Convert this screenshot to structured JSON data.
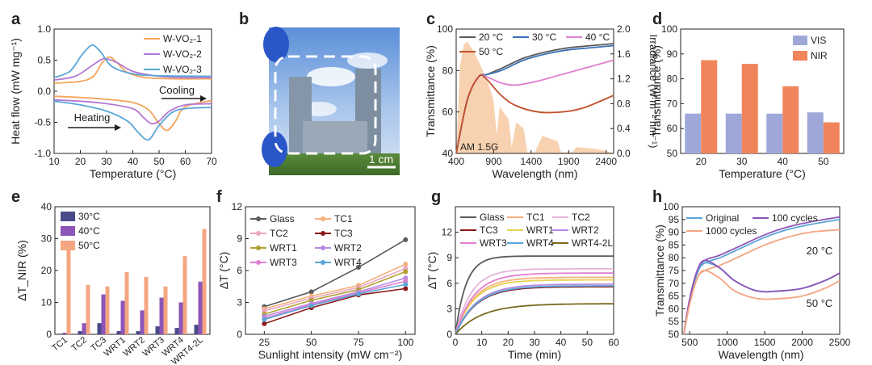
{
  "colors": {
    "orange": "#f5a45a",
    "purple": "#b478d2",
    "blue": "#5aa6d8",
    "blueDark": "#3a72b8",
    "salmon": "#f4a582",
    "navy": "#4a4a8a",
    "violet": "#8c55b8",
    "periwinkle": "#9ea8d8",
    "coral": "#f2845c",
    "darkgray": "#5a5a5a",
    "darkred": "#8b1a1a",
    "olive": "#b0a030",
    "peach": "#f5b07c",
    "pinklight": "#eaa5c0",
    "violetLight": "#b88ae0",
    "pink": "#e07fd0",
    "brown": "#c0502a",
    "khaki": "#e8d050",
    "oliveDark": "#7a6a20",
    "lavender": "#e6b4d8"
  },
  "panel_labels": [
    "a",
    "b",
    "c",
    "d",
    "e",
    "f",
    "g",
    "h"
  ],
  "chart_data": [
    {
      "id": "a",
      "type": "line",
      "xlabel": "Temperature (°C)",
      "ylabel": "Heat flow (mW mg⁻¹)",
      "xlim": [
        10,
        70
      ],
      "ylim": [
        -1.0,
        1.0
      ],
      "xticks": [
        "10",
        "20",
        "30",
        "40",
        "50",
        "60",
        "70"
      ],
      "yticks": [
        "-1.0",
        "-0.5",
        "0.0",
        "0.5",
        "1.0"
      ],
      "legend": [
        "W-VO₂-1",
        "W-VO₂-2",
        "W-VO₂-3"
      ],
      "annotations": [
        "Cooling",
        "Heating"
      ],
      "series": [
        {
          "name": "W-VO₂-1 cooling",
          "x": [
            10,
            20,
            25,
            28,
            31,
            34,
            38,
            45,
            55,
            70
          ],
          "y": [
            0.13,
            0.16,
            0.24,
            0.44,
            0.55,
            0.46,
            0.3,
            0.22,
            0.2,
            0.2
          ]
        },
        {
          "name": "W-VO₂-2 cooling",
          "x": [
            10,
            18,
            24,
            28,
            30,
            34,
            40,
            50,
            60,
            70
          ],
          "y": [
            0.18,
            0.24,
            0.4,
            0.51,
            0.52,
            0.46,
            0.32,
            0.24,
            0.22,
            0.22
          ]
        },
        {
          "name": "W-VO₂-3 cooling",
          "x": [
            10,
            16,
            20,
            23,
            25,
            28,
            32,
            40,
            50,
            70
          ],
          "y": [
            0.22,
            0.32,
            0.55,
            0.7,
            0.74,
            0.62,
            0.4,
            0.28,
            0.25,
            0.24
          ]
        },
        {
          "name": "W-VO₂-1 heating",
          "x": [
            10,
            20,
            30,
            40,
            46,
            50,
            53,
            56,
            60,
            70
          ],
          "y": [
            -0.08,
            -0.1,
            -0.13,
            -0.18,
            -0.3,
            -0.52,
            -0.63,
            -0.5,
            -0.25,
            -0.15
          ]
        },
        {
          "name": "W-VO₂-2 heating",
          "x": [
            10,
            20,
            30,
            40,
            44,
            47,
            50,
            54,
            60,
            70
          ],
          "y": [
            -0.14,
            -0.16,
            -0.2,
            -0.28,
            -0.42,
            -0.52,
            -0.48,
            -0.32,
            -0.22,
            -0.2
          ]
        },
        {
          "name": "W-VO₂-3 heating",
          "x": [
            10,
            20,
            30,
            38,
            42,
            46,
            50,
            55,
            60,
            70
          ],
          "y": [
            -0.16,
            -0.22,
            -0.32,
            -0.48,
            -0.66,
            -0.78,
            -0.55,
            -0.34,
            -0.28,
            -0.26
          ]
        }
      ]
    },
    {
      "id": "c",
      "type": "line",
      "xlabel": "Wavelength (nm)",
      "ylabel": "Transmittance (%)",
      "ylabel_right": "Irradiance (W m⁻² nm⁻¹)",
      "xlim": [
        400,
        2500
      ],
      "ylim": [
        40,
        100
      ],
      "ylim_right": [
        0,
        2.0
      ],
      "xticks": [
        "400",
        "900",
        "1400",
        "1900",
        "2400"
      ],
      "yticks": [
        "40",
        "60",
        "80",
        "100"
      ],
      "yticks_right": [
        "0.0",
        "0.4",
        "0.8",
        "1.2",
        "1.6",
        "2.0"
      ],
      "legend": [
        "20 °C",
        "30 °C",
        "40 °C",
        "50 °C"
      ],
      "annotation": "AM 1.5G",
      "series": [
        {
          "name": "20 °C",
          "x": [
            400,
            550,
            700,
            800,
            1000,
            1300,
            1600,
            1900,
            2200,
            2500
          ],
          "y": [
            40,
            66,
            77,
            78,
            81,
            86,
            89,
            91,
            92,
            93
          ]
        },
        {
          "name": "30 °C",
          "x": [
            400,
            550,
            700,
            800,
            1000,
            1300,
            1600,
            1900,
            2200,
            2500
          ],
          "y": [
            40,
            66,
            77,
            78,
            80,
            85,
            88,
            90,
            91,
            92
          ]
        },
        {
          "name": "40 °C",
          "x": [
            400,
            550,
            700,
            800,
            1000,
            1200,
            1500,
            1800,
            2100,
            2500
          ],
          "y": [
            40,
            66,
            77,
            77,
            74,
            73,
            75,
            78,
            81,
            85
          ]
        },
        {
          "name": "50 °C",
          "x": [
            400,
            550,
            700,
            800,
            1000,
            1200,
            1500,
            1800,
            2100,
            2500
          ],
          "y": [
            40,
            66,
            77,
            76,
            68,
            63,
            60,
            60,
            62,
            68
          ]
        }
      ]
    },
    {
      "id": "d",
      "type": "bar",
      "xlabel": "Temperature (°C)",
      "ylabel": "Transmittance (%)",
      "ylim": [
        50,
        100
      ],
      "categories": [
        "20",
        "30",
        "40",
        "50"
      ],
      "yticks": [
        "50",
        "60",
        "70",
        "80",
        "90",
        "100"
      ],
      "series": [
        {
          "name": "VIS",
          "values": [
            66,
            66,
            66,
            66.5
          ]
        },
        {
          "name": "NIR",
          "values": [
            87.5,
            86,
            77,
            62.5
          ]
        }
      ]
    },
    {
      "id": "e",
      "type": "bar",
      "ylabel": "ΔT_NIR (%)",
      "ylim": [
        0,
        40
      ],
      "yticks": [
        "0",
        "10",
        "20",
        "30",
        "40"
      ],
      "categories": [
        "TC1",
        "TC2",
        "TC3",
        "WRT1",
        "WRT2",
        "WRT3",
        "WRT4",
        "WRT4-2L"
      ],
      "legend": [
        "30°C",
        "40°C",
        "50°C"
      ],
      "series": [
        {
          "name": "30°C",
          "values": [
            0.2,
            1,
            3.5,
            1,
            1,
            2.5,
            2,
            3
          ]
        },
        {
          "name": "40°C",
          "values": [
            0.5,
            3.5,
            12.5,
            10.5,
            7.5,
            11.5,
            10,
            16.5
          ]
        },
        {
          "name": "50°C",
          "values": [
            27.5,
            15.5,
            15,
            19.5,
            18,
            15,
            24.5,
            33
          ]
        }
      ]
    },
    {
      "id": "f",
      "type": "line",
      "xlabel": "Sunlight intensity (mW cm⁻²)",
      "ylabel": "ΔT (°C)",
      "xlim": [
        15,
        105
      ],
      "ylim": [
        0,
        12
      ],
      "x": [
        25,
        50,
        75,
        100
      ],
      "xticks": [
        "25",
        "50",
        "75",
        "100"
      ],
      "yticks": [
        "0",
        "3",
        "6",
        "9",
        "12"
      ],
      "series": [
        {
          "name": "Glass",
          "values": [
            2.6,
            4.0,
            6.3,
            8.9
          ]
        },
        {
          "name": "TC1",
          "values": [
            2.4,
            3.6,
            4.6,
            6.6
          ]
        },
        {
          "name": "TC2",
          "values": [
            2.2,
            3.4,
            4.4,
            6.2
          ]
        },
        {
          "name": "TC3",
          "values": [
            1.0,
            2.5,
            3.7,
            4.3
          ]
        },
        {
          "name": "WRT1",
          "values": [
            1.9,
            3.2,
            4.2,
            5.9
          ]
        },
        {
          "name": "WRT2",
          "values": [
            1.7,
            2.9,
            4.0,
            5.3
          ]
        },
        {
          "name": "WRT3",
          "values": [
            1.5,
            2.8,
            3.9,
            5.0
          ]
        },
        {
          "name": "WRT4",
          "values": [
            1.4,
            2.7,
            3.8,
            4.7
          ]
        }
      ]
    },
    {
      "id": "g",
      "type": "line",
      "xlabel": "Time (min)",
      "ylabel": "ΔT (°C)",
      "xlim": [
        0,
        60
      ],
      "ylim": [
        0,
        15
      ],
      "xticks": [
        "0",
        "10",
        "20",
        "30",
        "40",
        "50",
        "60"
      ],
      "yticks": [
        "0",
        "3",
        "6",
        "9",
        "12"
      ],
      "series": [
        {
          "name": "Glass",
          "final": 9.2,
          "tau": 4
        },
        {
          "name": "TC1",
          "final": 6.7,
          "tau": 7
        },
        {
          "name": "TC2",
          "final": 7.7,
          "tau": 6
        },
        {
          "name": "TC3",
          "final": 5.6,
          "tau": 8
        },
        {
          "name": "WRT1",
          "final": 6.4,
          "tau": 7
        },
        {
          "name": "WRT2",
          "final": 5.9,
          "tau": 8
        },
        {
          "name": "WRT3",
          "final": 7.2,
          "tau": 7
        },
        {
          "name": "WRT4",
          "final": 5.7,
          "tau": 8
        },
        {
          "name": "WRT4-2L",
          "final": 3.6,
          "tau": 10
        }
      ]
    },
    {
      "id": "h",
      "type": "line",
      "xlabel": "Wavelength (nm)",
      "ylabel": "Transmittance (%)",
      "xlim": [
        400,
        2500
      ],
      "ylim": [
        50,
        100
      ],
      "xticks": [
        "500",
        "1000",
        "1500",
        "2000",
        "2500"
      ],
      "yticks": [
        "50",
        "55",
        "60",
        "65",
        "70",
        "75",
        "80",
        "85",
        "90",
        "95",
        "100"
      ],
      "legend": [
        "Original",
        "100 cycles",
        "1000 cycles"
      ],
      "annotations": [
        "20 °C",
        "50 °C"
      ],
      "series": [
        {
          "name": "Original 20 °C",
          "x": [
            420,
            500,
            600,
            700,
            900,
            1200,
            1500,
            1800,
            2100,
            2500
          ],
          "y": [
            50,
            63,
            74,
            78,
            80,
            84,
            88,
            91,
            93,
            95
          ]
        },
        {
          "name": "100 cycles 20 °C",
          "x": [
            420,
            500,
            600,
            700,
            900,
            1200,
            1500,
            1800,
            2100,
            2500
          ],
          "y": [
            50,
            64,
            75,
            79,
            81,
            85,
            89,
            92,
            94,
            96
          ]
        },
        {
          "name": "1000 cycles 20 °C",
          "x": [
            420,
            500,
            600,
            700,
            900,
            1200,
            1500,
            1800,
            2100,
            2500
          ],
          "y": [
            50,
            62,
            72,
            75,
            77,
            81,
            85,
            88,
            90,
            91
          ]
        },
        {
          "name": "Original 50 °C",
          "x": [
            420,
            500,
            600,
            700,
            900,
            1100,
            1400,
            1700,
            2000,
            2300,
            2500
          ],
          "y": [
            50,
            63,
            74,
            78,
            76,
            71,
            67,
            67,
            68,
            71,
            74
          ]
        },
        {
          "name": "100 cycles 50 °C",
          "x": [
            420,
            500,
            600,
            700,
            900,
            1100,
            1400,
            1700,
            2000,
            2300,
            2500
          ],
          "y": [
            50,
            64,
            75,
            79,
            76,
            71,
            67,
            67,
            68,
            71,
            74
          ]
        },
        {
          "name": "1000 cycles 50 °C",
          "x": [
            420,
            500,
            600,
            700,
            900,
            1100,
            1400,
            1700,
            2000,
            2300,
            2500
          ],
          "y": [
            50,
            62,
            72,
            75,
            72,
            67,
            64,
            64,
            65,
            68,
            71
          ]
        }
      ]
    }
  ],
  "photo": {
    "scale_bar": "1 cm"
  }
}
